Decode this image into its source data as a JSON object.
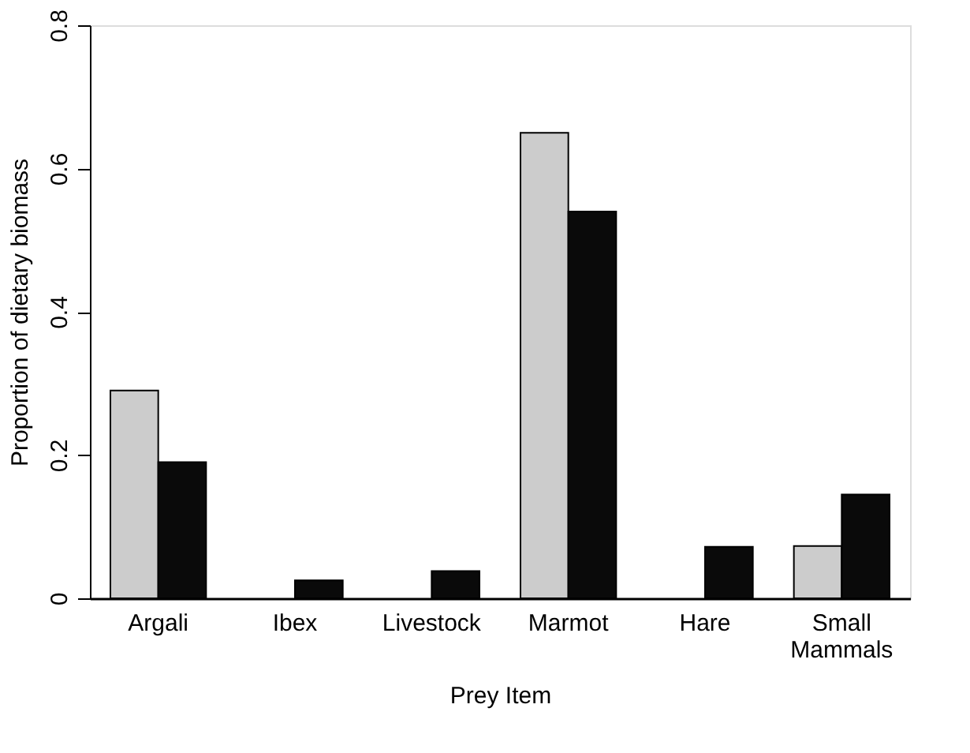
{
  "chart_data": {
    "type": "bar",
    "categories": [
      "Argali",
      "Ibex",
      "Livestock",
      "Marmot",
      "Hare",
      "Small Mammals"
    ],
    "series": [
      {
        "color": "#cccccc",
        "values": [
          0.29,
          null,
          null,
          0.65,
          null,
          0.073
        ]
      },
      {
        "color": "#0a0a0a",
        "values": [
          0.19,
          0.025,
          0.038,
          0.54,
          0.072,
          0.145
        ]
      }
    ],
    "xlabel": "Prey Item",
    "ylabel": "Proportion of dietary biomass",
    "ylim": [
      0,
      0.8
    ],
    "yticks": [
      {
        "value": 0,
        "label": "0"
      },
      0.2,
      0.4,
      0.6,
      0.8
    ],
    "grid": false,
    "legend": false
  }
}
